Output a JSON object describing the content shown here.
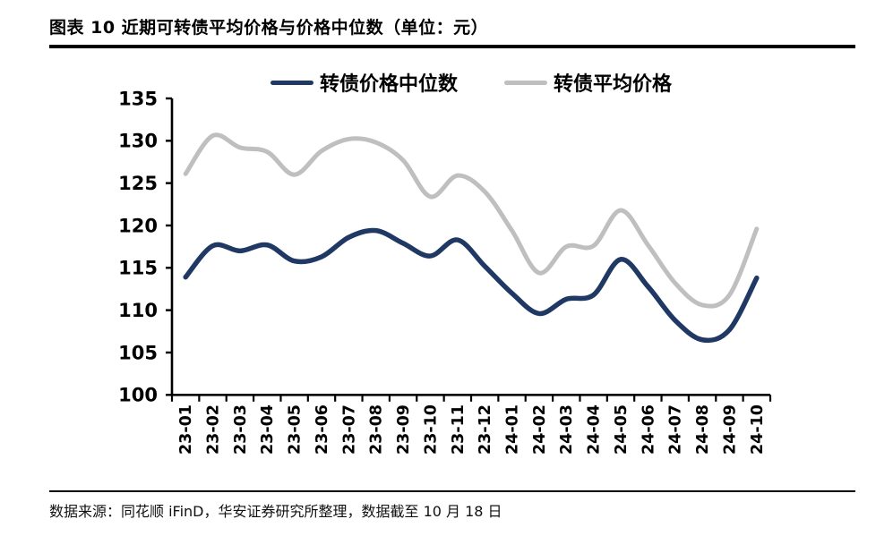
{
  "page": {
    "title": "图表 10 近期可转债平均价格与价格中位数（单位：元）",
    "source_note": "数据来源：同花顺 iFinD，华安证券研究所整理，数据截至 10 月 18 日"
  },
  "chart_data": {
    "type": "line",
    "smooth": true,
    "grid": false,
    "legend_position": "top",
    "unit": "元",
    "categories": [
      "23-01",
      "23-02",
      "23-03",
      "23-04",
      "23-05",
      "23-06",
      "23-07",
      "23-08",
      "23-09",
      "23-10",
      "23-11",
      "23-12",
      "24-01",
      "24-02",
      "24-03",
      "24-04",
      "24-05",
      "24-06",
      "24-07",
      "24-08",
      "24-09",
      "24-10"
    ],
    "series": [
      {
        "name": "转债价格中位数",
        "color": "#1f3864",
        "values": [
          113.9,
          117.6,
          117.0,
          117.7,
          115.8,
          116.3,
          118.6,
          119.4,
          117.9,
          116.4,
          118.3,
          115.2,
          112.0,
          109.6,
          111.3,
          111.8,
          116.0,
          112.8,
          108.8,
          106.5,
          107.7,
          113.8
        ]
      },
      {
        "name": "转债平均价格",
        "color": "#bfbfbf",
        "values": [
          126.1,
          130.6,
          129.2,
          128.7,
          126.0,
          128.8,
          130.2,
          129.8,
          127.7,
          123.4,
          125.9,
          124.0,
          119.4,
          114.4,
          117.5,
          117.6,
          121.8,
          117.7,
          113.2,
          110.6,
          111.8,
          119.6
        ]
      }
    ],
    "ylim": [
      100,
      135
    ],
    "yticks": [
      100,
      105,
      110,
      115,
      120,
      125,
      130,
      135
    ],
    "axis_color": "#000000"
  }
}
